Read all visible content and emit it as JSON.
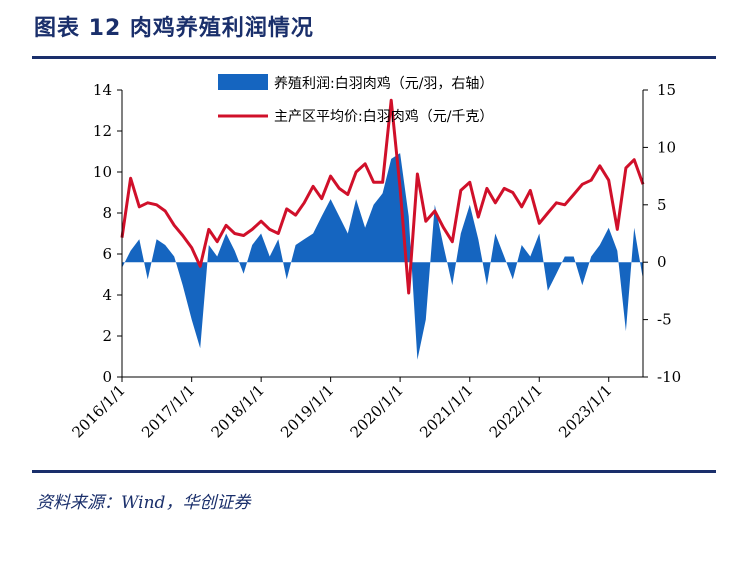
{
  "figure": {
    "title": "图表 12  肉鸡养殖利润情况",
    "source": "资料来源：Wind，华创证券"
  },
  "colors": {
    "profit": "#1565c0",
    "price": "#d0102a",
    "frame": "#1a2f6b"
  },
  "chart_data": {
    "type": "line",
    "title": "",
    "legend": {
      "position": "top",
      "entries": [
        "养殖利润:白羽肉鸡（元/羽，右轴）",
        "主产区平均价:白羽肉鸡（元/千克）"
      ]
    },
    "x_ticks": [
      "2016/1/1",
      "2017/1/1",
      "2018/1/1",
      "2019/1/1",
      "2020/1/1",
      "2021/1/1",
      "2022/1/1",
      "2023/1/1"
    ],
    "x_range": [
      "2016-01-01",
      "2023-06-30"
    ],
    "y_left": {
      "range": [
        0,
        14
      ],
      "ticks": [
        0,
        2,
        4,
        6,
        8,
        10,
        12,
        14
      ]
    },
    "y_right": {
      "range": [
        -10,
        15
      ],
      "ticks": [
        -10,
        -5,
        0,
        5,
        10,
        15
      ]
    },
    "grid": false,
    "series": [
      {
        "name": "养殖利润:白羽肉鸡（元/羽，右轴）",
        "type": "area",
        "axis": "right",
        "x": [
          "2016-01-01",
          "2016-02-15",
          "2016-04-01",
          "2016-05-15",
          "2016-07-01",
          "2016-08-15",
          "2016-10-01",
          "2016-11-15",
          "2017-01-01",
          "2017-02-15",
          "2017-04-01",
          "2017-05-15",
          "2017-07-01",
          "2017-08-15",
          "2017-10-01",
          "2017-11-15",
          "2018-01-01",
          "2018-02-15",
          "2018-04-01",
          "2018-05-15",
          "2018-07-01",
          "2018-08-15",
          "2018-10-01",
          "2018-11-15",
          "2019-01-01",
          "2019-02-15",
          "2019-04-01",
          "2019-05-15",
          "2019-07-01",
          "2019-08-15",
          "2019-10-01",
          "2019-11-15",
          "2020-01-01",
          "2020-02-15",
          "2020-04-01",
          "2020-05-15",
          "2020-07-01",
          "2020-08-15",
          "2020-10-01",
          "2020-11-15",
          "2021-01-01",
          "2021-02-15",
          "2021-04-01",
          "2021-05-15",
          "2021-07-01",
          "2021-08-15",
          "2021-10-01",
          "2021-11-15",
          "2022-01-01",
          "2022-02-15",
          "2022-04-01",
          "2022-05-15",
          "2022-07-01",
          "2022-08-15",
          "2022-10-01",
          "2022-11-15",
          "2023-01-01",
          "2023-02-15",
          "2023-04-01",
          "2023-05-15",
          "2023-06-30"
        ],
        "values": [
          -0.5,
          1,
          2,
          -1.5,
          2,
          1.5,
          0.5,
          -2,
          -5,
          -7.5,
          1.5,
          0.5,
          2.5,
          1,
          -1,
          1.5,
          2.5,
          0.5,
          2,
          -1.5,
          1.5,
          2,
          2.5,
          4,
          5.5,
          4,
          2.5,
          5.5,
          3,
          5,
          6,
          9,
          9.5,
          4,
          -8.5,
          -5,
          5,
          1.5,
          -2,
          2.5,
          5,
          2,
          -2,
          2.5,
          0.5,
          -1.5,
          1.5,
          0.5,
          2.5,
          -2.5,
          -1,
          0.5,
          0.5,
          -2,
          0.5,
          1.5,
          3,
          1,
          -6,
          3,
          -1.5
        ]
      },
      {
        "name": "主产区平均价:白羽肉鸡（元/千克）",
        "type": "line",
        "axis": "left",
        "x": [
          "2016-01-01",
          "2016-02-15",
          "2016-04-01",
          "2016-05-15",
          "2016-07-01",
          "2016-08-15",
          "2016-10-01",
          "2016-11-15",
          "2017-01-01",
          "2017-02-15",
          "2017-04-01",
          "2017-05-15",
          "2017-07-01",
          "2017-08-15",
          "2017-10-01",
          "2017-11-15",
          "2018-01-01",
          "2018-02-15",
          "2018-04-01",
          "2018-05-15",
          "2018-07-01",
          "2018-08-15",
          "2018-10-01",
          "2018-11-15",
          "2019-01-01",
          "2019-02-15",
          "2019-04-01",
          "2019-05-15",
          "2019-07-01",
          "2019-08-15",
          "2019-10-01",
          "2019-11-15",
          "2020-01-01",
          "2020-02-15",
          "2020-04-01",
          "2020-05-15",
          "2020-07-01",
          "2020-08-15",
          "2020-10-01",
          "2020-11-15",
          "2021-01-01",
          "2021-02-15",
          "2021-04-01",
          "2021-05-15",
          "2021-07-01",
          "2021-08-15",
          "2021-10-01",
          "2021-11-15",
          "2022-01-01",
          "2022-02-15",
          "2022-04-01",
          "2022-05-15",
          "2022-07-01",
          "2022-08-15",
          "2022-10-01",
          "2022-11-15",
          "2023-01-01",
          "2023-02-15",
          "2023-04-01",
          "2023-05-15",
          "2023-06-30"
        ],
        "values": [
          6.8,
          9.7,
          8.3,
          8.5,
          8.4,
          8.1,
          7.4,
          6.9,
          6.3,
          5.4,
          7.2,
          6.6,
          7.4,
          7.0,
          6.9,
          7.2,
          7.6,
          7.2,
          7.0,
          8.2,
          7.9,
          8.5,
          9.3,
          8.7,
          9.8,
          9.2,
          8.9,
          10.0,
          10.4,
          9.5,
          9.5,
          13.5,
          9.2,
          4.1,
          9.9,
          7.6,
          8.1,
          7.3,
          6.6,
          9.1,
          9.5,
          7.8,
          9.2,
          8.5,
          9.2,
          9.0,
          8.3,
          9.1,
          7.5,
          8.0,
          8.5,
          8.4,
          8.9,
          9.4,
          9.6,
          10.3,
          9.6,
          7.2,
          10.2,
          10.6,
          9.4
        ]
      }
    ]
  }
}
